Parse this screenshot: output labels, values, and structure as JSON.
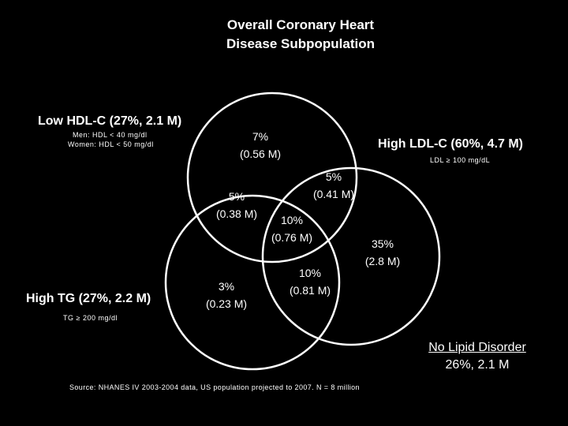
{
  "title": {
    "line1": "Overall Coronary Heart",
    "line2": "Disease Subpopulation"
  },
  "sets": {
    "low_hdl": {
      "label": "Low HDL-C (27%, 2.1 M)",
      "note1": "Men: HDL < 40 mg/dl",
      "note2": "Women: HDL < 50 mg/dl"
    },
    "high_ldl": {
      "label": "High LDL-C (60%, 4.7 M)",
      "note": "LDL ≥ 100 mg/dL"
    },
    "high_tg": {
      "label": "High TG (27%, 2.2 M)",
      "note": "TG ≥ 200 mg/dl"
    }
  },
  "regions": {
    "hdl_only": {
      "pct": "7%",
      "n": "(0.56 M)"
    },
    "hdl_tg": {
      "pct": "5%",
      "n": "(0.38 M)"
    },
    "hdl_ldl": {
      "pct": "5%",
      "n": "(0.41 M)"
    },
    "all_three": {
      "pct": "10%",
      "n": "(0.76 M)"
    },
    "ldl_only": {
      "pct": "35%",
      "n": "(2.8 M)"
    },
    "tg_only": {
      "pct": "3%",
      "n": "(0.23 M)"
    },
    "ldl_tg": {
      "pct": "10%",
      "n": "(0.81 M)"
    }
  },
  "no_lipid": {
    "label": "No Lipid Disorder",
    "value": "26%, 2.1 M"
  },
  "source": "Source:  NHANES IV 2003-2004 data, US population projected to 2007. N = 8 million",
  "colors": {
    "background": "#000000",
    "text": "#ffffff",
    "circle_stroke": "#ffffff"
  }
}
